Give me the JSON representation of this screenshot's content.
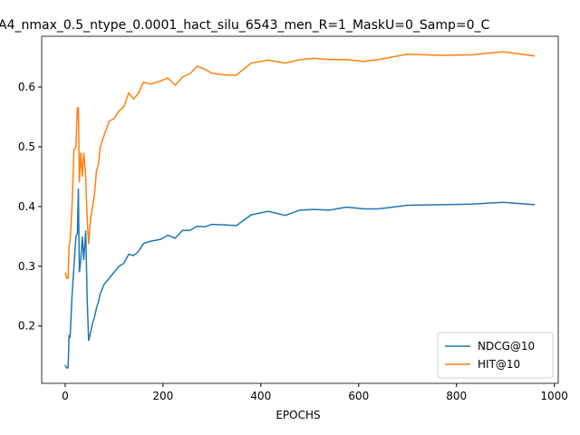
{
  "chart_data": {
    "type": "line",
    "title": "A4_nmax_0.5_ntype_0.0001_hact_silu_6543_men_R=1_MaskU=0_Samp=0_C",
    "xlabel": "EPOCHS",
    "x": [
      0,
      3,
      6,
      8,
      10,
      14,
      18,
      22,
      25,
      27,
      29,
      32,
      35,
      38,
      42,
      45,
      48,
      52,
      56,
      60,
      64,
      68,
      72,
      80,
      90,
      100,
      110,
      120,
      130,
      140,
      150,
      160,
      175,
      195,
      210,
      225,
      240,
      255,
      270,
      285,
      300,
      330,
      350,
      380,
      415,
      450,
      480,
      510,
      540,
      575,
      610,
      640,
      700,
      770,
      830,
      895,
      960
    ],
    "series": [
      {
        "name": "NDCG@10",
        "color": "#1f77b4",
        "values": [
          0.135,
          0.13,
          0.13,
          0.185,
          0.18,
          0.25,
          0.3,
          0.35,
          0.355,
          0.43,
          0.29,
          0.31,
          0.35,
          0.31,
          0.36,
          0.245,
          0.175,
          0.19,
          0.205,
          0.215,
          0.23,
          0.24,
          0.255,
          0.27,
          0.28,
          0.29,
          0.3,
          0.305,
          0.32,
          0.318,
          0.325,
          0.338,
          0.342,
          0.345,
          0.352,
          0.347,
          0.36,
          0.36,
          0.367,
          0.366,
          0.37,
          0.369,
          0.368,
          0.386,
          0.392,
          0.385,
          0.394,
          0.395,
          0.394,
          0.399,
          0.396,
          0.396,
          0.402,
          0.403,
          0.404,
          0.407,
          0.403
        ]
      },
      {
        "name": "HIT@10",
        "color": "#ff7f0e",
        "values": [
          0.29,
          0.28,
          0.28,
          0.335,
          0.34,
          0.4,
          0.495,
          0.5,
          0.565,
          0.565,
          0.44,
          0.49,
          0.45,
          0.49,
          0.45,
          0.38,
          0.337,
          0.38,
          0.4,
          0.42,
          0.46,
          0.47,
          0.5,
          0.52,
          0.543,
          0.547,
          0.56,
          0.567,
          0.59,
          0.58,
          0.59,
          0.608,
          0.605,
          0.61,
          0.615,
          0.603,
          0.617,
          0.622,
          0.635,
          0.63,
          0.623,
          0.62,
          0.62,
          0.64,
          0.645,
          0.64,
          0.646,
          0.648,
          0.646,
          0.646,
          0.643,
          0.646,
          0.655,
          0.653,
          0.654,
          0.659,
          0.652
        ]
      }
    ],
    "xlim": [
      -48,
      1008
    ],
    "xticks": [
      0,
      200,
      400,
      600,
      800,
      1000
    ],
    "ylim": [
      0.104,
      0.685
    ],
    "yticks": [
      0.2,
      0.3,
      0.4,
      0.5,
      0.6
    ],
    "legend": "lower right"
  }
}
